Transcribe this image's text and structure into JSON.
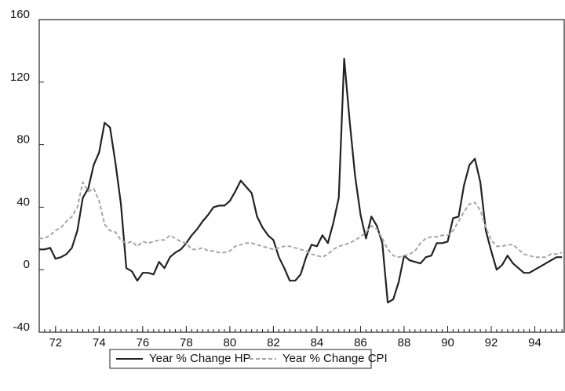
{
  "chart_data": {
    "type": "line",
    "x": [
      71.25,
      71.5,
      71.75,
      72,
      72.25,
      72.5,
      72.75,
      73,
      73.25,
      73.5,
      73.75,
      74,
      74.25,
      74.5,
      74.75,
      75,
      75.25,
      75.5,
      75.75,
      76,
      76.25,
      76.5,
      76.75,
      77,
      77.25,
      77.5,
      77.75,
      78,
      78.25,
      78.5,
      78.75,
      79,
      79.25,
      79.5,
      79.75,
      80,
      80.25,
      80.5,
      80.75,
      81,
      81.25,
      81.5,
      81.75,
      82,
      82.25,
      82.5,
      82.75,
      83,
      83.25,
      83.5,
      83.75,
      84,
      84.25,
      84.5,
      84.75,
      85,
      85.25,
      85.5,
      85.75,
      86,
      86.25,
      86.5,
      86.75,
      87,
      87.25,
      87.5,
      87.75,
      88,
      88.25,
      88.5,
      88.75,
      89,
      89.25,
      89.5,
      89.75,
      90,
      90.25,
      90.5,
      90.75,
      91,
      91.25,
      91.5,
      91.75,
      92,
      92.25,
      92.5,
      92.75,
      93,
      93.25,
      93.5,
      93.75,
      94,
      94.25,
      94.5,
      94.75,
      95,
      95.25
    ],
    "series": [
      {
        "name": "Year % Change HP",
        "color": "#222222",
        "dash": false,
        "values": [
          13,
          13,
          14,
          7,
          8,
          10,
          14,
          25,
          46,
          52,
          67,
          75,
          94,
          91,
          68,
          42,
          1,
          -1,
          -7,
          -2,
          -2,
          -3,
          5,
          1,
          8,
          11,
          13,
          17,
          22,
          26,
          31,
          35,
          40,
          41,
          41,
          44,
          50,
          57,
          53,
          49,
          34,
          27,
          22,
          19,
          8,
          1,
          -7,
          -7,
          -3,
          8,
          16,
          15,
          22,
          17,
          30,
          46,
          135,
          95,
          60,
          35,
          20,
          34,
          28,
          17,
          -21,
          -19,
          -8,
          9,
          6,
          5,
          4,
          8,
          9,
          17,
          17,
          18,
          33,
          34,
          54,
          67,
          71,
          56,
          25,
          12,
          0,
          3,
          9,
          4,
          1,
          -2,
          -2,
          0,
          2,
          4,
          6,
          8,
          8
        ]
      },
      {
        "name": "Year % Change CPI",
        "color": "#a6a6a6",
        "dash": true,
        "values": [
          20,
          20,
          22,
          25,
          27,
          31,
          34,
          40,
          56,
          50,
          52,
          44,
          29,
          25,
          24,
          19,
          17,
          18,
          15,
          18,
          17,
          18,
          19,
          19,
          22,
          20,
          18,
          17,
          13,
          13,
          14,
          12,
          12,
          11,
          11,
          12,
          15,
          16,
          17,
          17,
          16,
          15,
          14,
          13,
          14,
          15,
          15,
          14,
          13,
          12,
          10,
          9,
          8,
          10,
          13,
          15,
          16,
          17,
          19,
          21,
          24,
          28,
          26,
          20,
          13,
          9,
          8,
          9,
          10,
          12,
          17,
          20,
          21,
          21,
          22,
          22,
          25,
          31,
          37,
          42,
          43,
          38,
          27,
          19,
          15,
          15,
          16,
          16,
          13,
          10,
          9,
          8,
          8,
          8,
          10,
          10,
          11
        ]
      }
    ],
    "xlim": [
      71.25,
      95.35
    ],
    "xticks": [
      72,
      74,
      76,
      78,
      80,
      82,
      84,
      86,
      88,
      90,
      92,
      94
    ],
    "ylim": [
      -40,
      160
    ],
    "yticks": [
      -40,
      0,
      40,
      80,
      120,
      160
    ]
  }
}
